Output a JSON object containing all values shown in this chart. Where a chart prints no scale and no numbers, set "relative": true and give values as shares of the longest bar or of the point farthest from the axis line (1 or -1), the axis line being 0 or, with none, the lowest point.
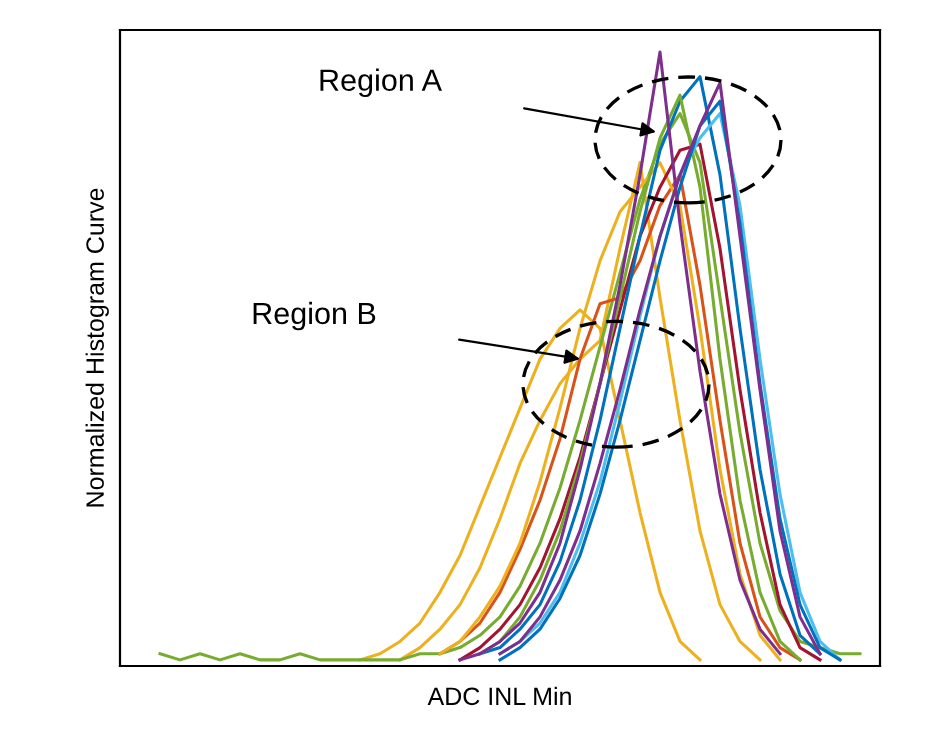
{
  "chart_data": {
    "type": "line",
    "relative": true,
    "xlabel": "ADC INL Min",
    "ylabel": "Normalized Histogram Curve",
    "grid": false,
    "tick_labels": false,
    "marker": "none",
    "line_style": "solid",
    "categories": [
      null,
      null,
      null,
      null,
      null,
      null,
      null,
      null,
      null,
      null,
      null,
      null,
      null,
      null,
      null,
      null,
      null,
      null,
      null,
      null,
      null,
      null,
      null,
      null,
      null,
      null,
      null,
      null,
      null,
      null,
      null,
      null,
      null,
      null,
      null,
      null
    ],
    "annotations": [
      "Region A",
      "Region B"
    ],
    "series": [
      {
        "color": "#edb120",
        "values": [
          null,
          null,
          null,
          null,
          null,
          null,
          null,
          null,
          null,
          null,
          0.01,
          0.02,
          0.04,
          0.07,
          0.12,
          0.18,
          0.26,
          0.34,
          0.42,
          0.5,
          0.55,
          0.58,
          0.55,
          0.4,
          0.25,
          0.12,
          0.04,
          0.01,
          null,
          null,
          null,
          null,
          null,
          null,
          null,
          null
        ]
      },
      {
        "color": "#edb120",
        "values": [
          null,
          null,
          null,
          null,
          null,
          null,
          null,
          null,
          null,
          null,
          null,
          null,
          0.01,
          0.03,
          0.06,
          0.1,
          0.16,
          0.24,
          0.33,
          0.4,
          0.46,
          0.5,
          0.53,
          0.68,
          0.82,
          0.6,
          0.4,
          0.22,
          0.1,
          0.04,
          0.01,
          null,
          null,
          null,
          null,
          null
        ]
      },
      {
        "color": "#77ac30",
        "values": [
          0.02,
          0.01,
          0.02,
          0.01,
          0.02,
          0.01,
          0.01,
          0.02,
          0.01,
          0.01,
          0.01,
          0.01,
          0.01,
          0.02,
          0.02,
          0.03,
          0.05,
          0.08,
          0.13,
          0.2,
          0.29,
          0.4,
          0.52,
          0.64,
          0.76,
          0.85,
          0.9,
          0.82,
          0.6,
          0.38,
          0.2,
          0.09,
          0.04,
          0.03,
          0.02,
          0.02
        ]
      },
      {
        "color": "#d95319",
        "values": [
          null,
          null,
          null,
          null,
          null,
          null,
          null,
          null,
          null,
          null,
          null,
          null,
          null,
          null,
          0.02,
          0.04,
          0.07,
          0.12,
          0.19,
          0.27,
          0.37,
          0.5,
          0.59,
          0.6,
          0.66,
          0.75,
          0.8,
          0.62,
          0.4,
          0.2,
          0.08,
          0.03,
          0.01,
          null,
          null,
          null
        ]
      },
      {
        "color": "#edb120",
        "values": [
          null,
          null,
          null,
          null,
          null,
          null,
          null,
          null,
          null,
          null,
          null,
          null,
          null,
          null,
          0.02,
          0.04,
          0.08,
          0.13,
          0.2,
          0.3,
          0.42,
          0.55,
          0.66,
          0.74,
          0.78,
          0.82,
          0.75,
          0.55,
          0.32,
          0.15,
          0.05,
          0.01,
          null,
          null,
          null,
          null
        ]
      },
      {
        "color": "#a2142f",
        "values": [
          null,
          null,
          null,
          null,
          null,
          null,
          null,
          null,
          null,
          null,
          null,
          null,
          null,
          null,
          null,
          0.01,
          0.03,
          0.06,
          0.1,
          0.16,
          0.24,
          0.34,
          0.46,
          0.58,
          0.7,
          0.78,
          0.84,
          0.85,
          0.68,
          0.45,
          0.25,
          0.1,
          0.03,
          0.01,
          null,
          null
        ]
      },
      {
        "color": "#0072bd",
        "values": [
          null,
          null,
          null,
          null,
          null,
          null,
          null,
          null,
          null,
          null,
          null,
          null,
          null,
          null,
          null,
          null,
          0.02,
          0.03,
          0.06,
          0.1,
          0.17,
          0.27,
          0.4,
          0.55,
          0.7,
          0.84,
          0.92,
          0.96,
          0.8,
          0.55,
          0.32,
          0.15,
          0.05,
          0.02,
          null,
          null
        ]
      },
      {
        "color": "#77ac30",
        "values": [
          null,
          null,
          null,
          null,
          null,
          null,
          null,
          null,
          null,
          null,
          null,
          null,
          null,
          null,
          null,
          null,
          0.02,
          0.04,
          0.08,
          0.14,
          0.22,
          0.33,
          0.46,
          0.6,
          0.74,
          0.86,
          0.93,
          0.78,
          0.5,
          0.27,
          0.12,
          0.04,
          0.01,
          null,
          null,
          null
        ]
      },
      {
        "color": "#4dbeee",
        "values": [
          null,
          null,
          null,
          null,
          null,
          null,
          null,
          null,
          null,
          null,
          null,
          null,
          null,
          null,
          null,
          null,
          null,
          0.02,
          0.04,
          0.07,
          0.12,
          0.2,
          0.3,
          0.43,
          0.57,
          0.7,
          0.8,
          0.86,
          0.9,
          0.75,
          0.5,
          0.28,
          0.12,
          0.04,
          0.01,
          null
        ]
      },
      {
        "color": "#0072bd",
        "values": [
          null,
          null,
          null,
          null,
          null,
          null,
          null,
          null,
          null,
          null,
          null,
          null,
          null,
          null,
          null,
          null,
          null,
          0.01,
          0.03,
          0.06,
          0.11,
          0.18,
          0.28,
          0.4,
          0.53,
          0.66,
          0.78,
          0.88,
          0.92,
          0.72,
          0.46,
          0.24,
          0.1,
          0.03,
          0.01,
          null
        ]
      },
      {
        "color": "#7e2f8e",
        "values": [
          null,
          null,
          null,
          null,
          null,
          null,
          null,
          null,
          null,
          null,
          null,
          null,
          null,
          null,
          null,
          0.01,
          0.02,
          0.04,
          0.07,
          0.12,
          0.2,
          0.32,
          0.46,
          0.62,
          0.8,
          1.0,
          0.72,
          0.48,
          0.28,
          0.14,
          0.06,
          0.02,
          null,
          null,
          null,
          null
        ]
      },
      {
        "color": "#7e2f8e",
        "values": [
          null,
          null,
          null,
          null,
          null,
          null,
          null,
          null,
          null,
          null,
          null,
          null,
          null,
          null,
          null,
          null,
          null,
          0.02,
          0.04,
          0.08,
          0.14,
          0.22,
          0.33,
          0.45,
          0.58,
          0.7,
          0.8,
          0.88,
          0.95,
          0.7,
          0.45,
          0.22,
          0.08,
          0.02,
          null,
          null
        ]
      }
    ]
  }
}
